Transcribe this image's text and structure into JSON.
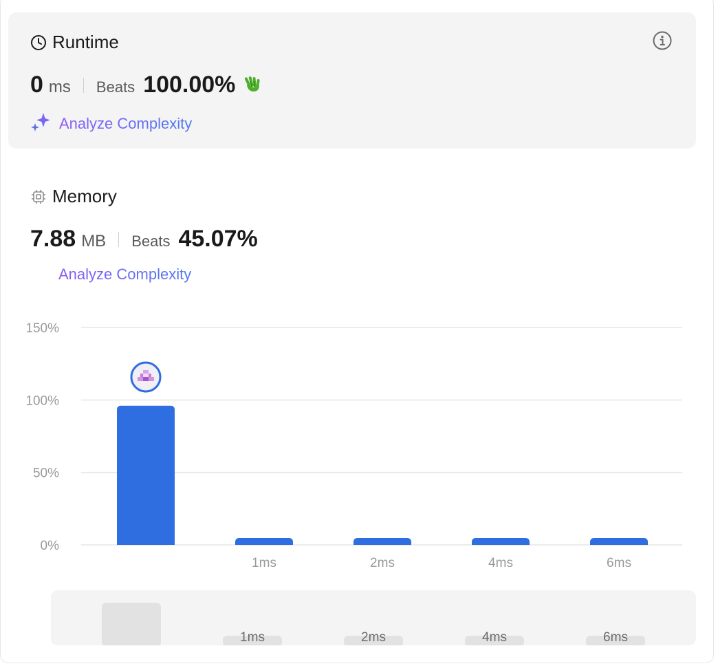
{
  "runtime": {
    "title": "Runtime",
    "value": "0",
    "unit": "ms",
    "beats_label": "Beats",
    "beats_pct": "100.00%",
    "analyze_label": "Analyze Complexity",
    "info_icon": "info-icon",
    "clock_icon": "clock-icon",
    "badge_icon": "clapping-hands-icon"
  },
  "memory": {
    "title": "Memory",
    "value": "7.88",
    "unit": "MB",
    "beats_label": "Beats",
    "beats_pct": "45.07%",
    "analyze_label": "Analyze Complexity",
    "chip_icon": "chip-icon"
  },
  "colors": {
    "bar": "#2f6ee0",
    "grid": "#e6e6e6",
    "tick": "#9a9a9a",
    "brush_bar": "#e2e2e2",
    "accent_purple": "#8b5cf6",
    "accent_blue": "#4f7bef"
  },
  "chart_data": {
    "type": "bar",
    "categories": [
      "",
      "1ms",
      "2ms",
      "4ms",
      "6ms"
    ],
    "values": [
      96,
      2,
      2,
      2,
      2
    ],
    "ylim": [
      0,
      150
    ],
    "yticks": [
      "0%",
      "50%",
      "100%",
      "150%"
    ],
    "ytick_values": [
      0,
      50,
      100,
      150
    ],
    "title": "",
    "xlabel": "",
    "ylabel": "",
    "grid": true,
    "highlight_index": 0
  },
  "brush": {
    "categories": [
      "",
      "1ms",
      "2ms",
      "4ms",
      "6ms"
    ]
  }
}
